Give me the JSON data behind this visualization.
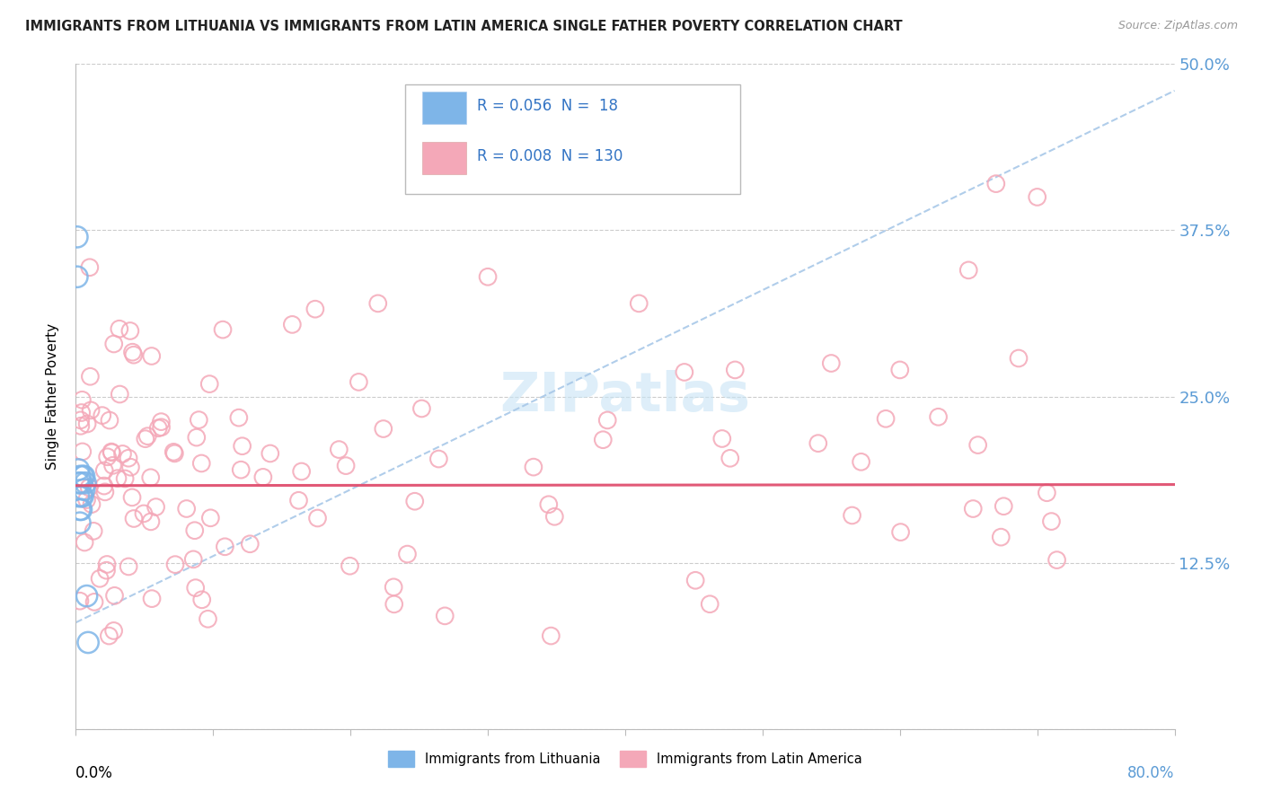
{
  "title": "IMMIGRANTS FROM LITHUANIA VS IMMIGRANTS FROM LATIN AMERICA SINGLE FATHER POVERTY CORRELATION CHART",
  "source": "Source: ZipAtlas.com",
  "ylabel": "Single Father Poverty",
  "color_lithuania": "#7EB5E8",
  "color_latin": "#F4A8B8",
  "color_trendline_lithuania": "#A8C8E8",
  "color_trendline_latin": "#E05070",
  "background_color": "#FFFFFF",
  "watermark_color": "#C8E4F5",
  "xlim": [
    0.0,
    0.8
  ],
  "ylim": [
    0.0,
    0.5
  ],
  "right_ytick_values": [
    0.125,
    0.25,
    0.375,
    0.5
  ],
  "right_ytick_labels": [
    "12.5%",
    "25.0%",
    "37.5%",
    "50.0%"
  ],
  "lith_x": [
    0.001,
    0.001,
    0.002,
    0.002,
    0.002,
    0.003,
    0.003,
    0.003,
    0.004,
    0.004,
    0.004,
    0.005,
    0.005,
    0.006,
    0.006,
    0.007,
    0.008,
    0.009
  ],
  "lith_y": [
    0.37,
    0.34,
    0.195,
    0.185,
    0.175,
    0.19,
    0.165,
    0.155,
    0.185,
    0.175,
    0.165,
    0.19,
    0.175,
    0.19,
    0.18,
    0.185,
    0.1,
    0.065
  ],
  "lith_trend_x0": 0.0,
  "lith_trend_x1": 0.8,
  "lith_trend_y0": 0.08,
  "lith_trend_y1": 0.48,
  "lat_trend_y": 0.183,
  "lat_trend_slope": 0.001
}
